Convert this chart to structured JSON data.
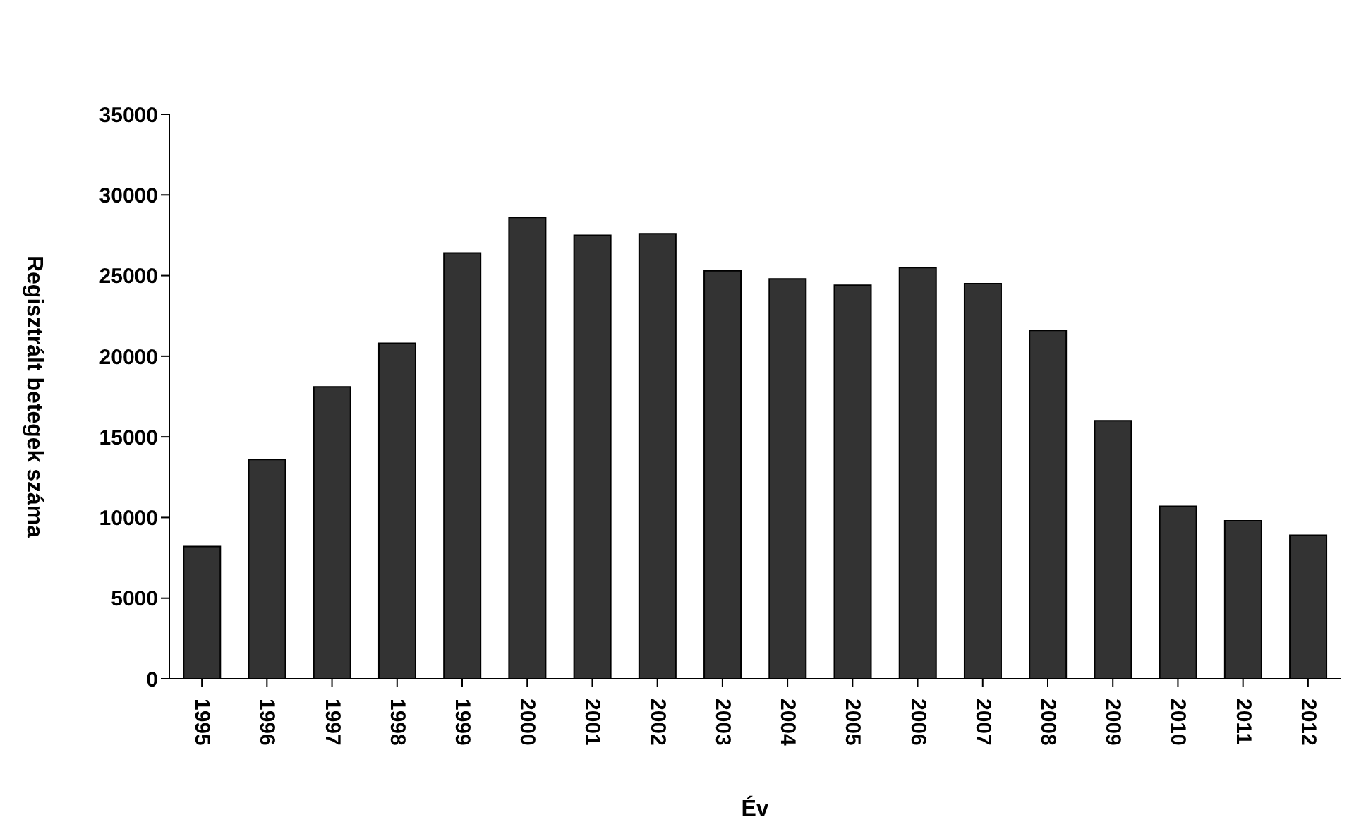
{
  "chart_data": {
    "type": "bar",
    "xlabel": "Év",
    "ylabel": "Regisztrált betegek száma",
    "categories": [
      "1995",
      "1996",
      "1997",
      "1998",
      "1999",
      "2000",
      "2001",
      "2002",
      "2003",
      "2004",
      "2005",
      "2006",
      "2007",
      "2008",
      "2009",
      "2010",
      "2011",
      "2012"
    ],
    "values": [
      8200,
      13600,
      18100,
      20800,
      26400,
      28600,
      27500,
      27600,
      25300,
      24800,
      24400,
      25500,
      24500,
      21600,
      16000,
      10700,
      9800,
      8900
    ],
    "color": "#333333",
    "ylim": [
      0,
      35000
    ],
    "yticks": [
      0,
      5000,
      10000,
      15000,
      20000,
      25000,
      30000,
      35000
    ],
    "grid": false,
    "legend": false
  }
}
